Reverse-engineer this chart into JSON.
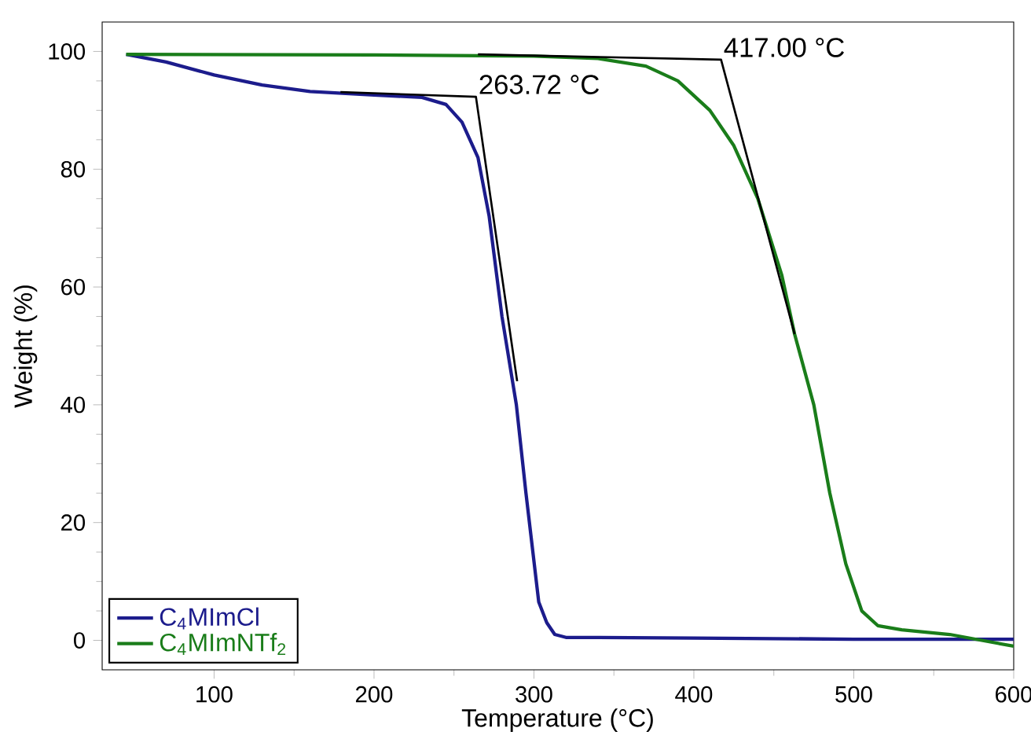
{
  "chart_data": {
    "type": "line",
    "xlabel": "Temperature (°C)",
    "ylabel": "Weight (%)",
    "xlim": [
      30,
      600
    ],
    "xticks": [
      100,
      200,
      300,
      400,
      500,
      600
    ],
    "ylim": [
      -5,
      105
    ],
    "yticks": [
      0,
      20,
      40,
      60,
      80,
      100
    ],
    "grid": false,
    "legend": "bottom left",
    "marker": "none",
    "line_style": "solid",
    "series": [
      {
        "name": "C$_{4}$MImCl",
        "color": "#1c1c8c",
        "x": [
          45,
          70,
          100,
          130,
          160,
          200,
          230,
          245,
          255,
          265,
          272,
          280,
          289,
          295,
          303,
          308,
          313,
          320,
          400,
          500,
          600
        ],
        "values": [
          99.5,
          98.2,
          96,
          94.3,
          93.2,
          92.6,
          92.2,
          91,
          88,
          82,
          72,
          55,
          40,
          25,
          6.5,
          3,
          1,
          0.5,
          0.4,
          0.2,
          0.2
        ]
      },
      {
        "name": "C$_{4}$MImNTf$_{2}$",
        "color": "#1a7d1a",
        "x": [
          45,
          200,
          300,
          340,
          370,
          390,
          410,
          425,
          440,
          455,
          463,
          475,
          485,
          495,
          505,
          515,
          530,
          560,
          580,
          600
        ],
        "values": [
          99.5,
          99.4,
          99.2,
          98.8,
          97.5,
          95,
          90,
          84,
          75,
          62,
          52,
          40,
          25,
          13,
          5,
          2.5,
          1.8,
          1,
          0,
          -1
        ]
      },
      {
        "color": "#000000",
        "x": [
          179,
          263.72,
          289.5
        ],
        "values": [
          93.1,
          92.3,
          44
        ]
      },
      {
        "color": "#000000",
        "x": [
          265,
          417,
          463
        ],
        "values": [
          99.5,
          98.6,
          52
        ]
      }
    ],
    "annotations": [
      {
        "text": "263.72 °C",
        "x": 263.72,
        "y": 92.3
      },
      {
        "text": "417.00 °C",
        "x": 417,
        "y": 98.6
      }
    ]
  }
}
